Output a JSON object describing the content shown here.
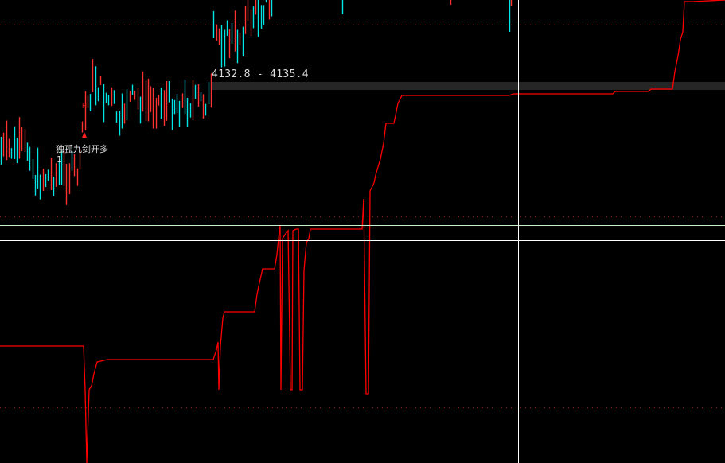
{
  "chart_data": {
    "type": "line",
    "title": "",
    "price_range_label": "4132.8 - 4135.4",
    "signal": {
      "label": "独孤九剑开多",
      "count": "1"
    },
    "series": [
      {
        "kind": "candlestick-bars"
      },
      {
        "kind": "step-line"
      }
    ],
    "grid": true,
    "colors": {
      "background": "#000000",
      "up_bar": "#ff3232",
      "down_bar": "#00e5e5",
      "indicator_line": "#ff0000",
      "crosshair": "#ffffff",
      "level_line": "#c8f0c8",
      "grid": "#8b1a1a",
      "range_band": "#262626",
      "text": "#dcdcdc"
    }
  }
}
